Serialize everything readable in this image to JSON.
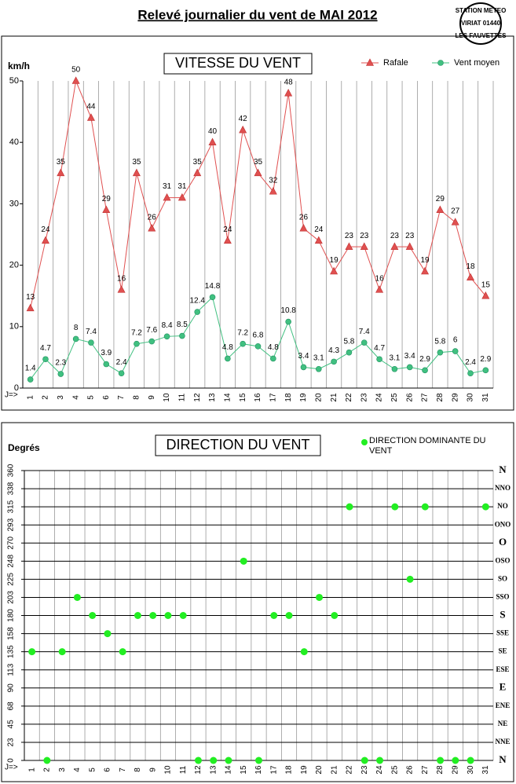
{
  "title": "Relevé journalier du vent de MAI 2012",
  "stamp": [
    "STATION METEO",
    "VIRIAT 01440",
    "LES FAUVETTES"
  ],
  "chart_data": [
    {
      "type": "line",
      "title": "VITESSE DU VENT",
      "y_label": "km/h",
      "x_label": "J=>",
      "categories": [
        "1",
        "2",
        "3",
        "4",
        "5",
        "6",
        "7",
        "8",
        "9",
        "10",
        "11",
        "12",
        "13",
        "14",
        "15",
        "16",
        "17",
        "18",
        "19",
        "20",
        "21",
        "22",
        "23",
        "24",
        "25",
        "26",
        "27",
        "28",
        "29",
        "30",
        "31"
      ],
      "ylim": [
        0,
        50
      ],
      "yticks": [
        0,
        10,
        20,
        30,
        40,
        50
      ],
      "grid": true,
      "legend": "top-right",
      "series": [
        {
          "name": "Rafale",
          "color": "#e05050",
          "marker": "triangle",
          "values": [
            13,
            24,
            35,
            50,
            44,
            29,
            16,
            35,
            26,
            31,
            31,
            35,
            40,
            24,
            42,
            35,
            32,
            48,
            26,
            24,
            19,
            23,
            23,
            16,
            23,
            23,
            19,
            29,
            27,
            18,
            15
          ]
        },
        {
          "name": "Vent moyen",
          "color": "#40c080",
          "marker": "circle",
          "values": [
            1.4,
            4.7,
            2.3,
            8,
            7.4,
            3.9,
            2.4,
            7.2,
            7.6,
            8.4,
            8.5,
            12.4,
            14.8,
            4.8,
            7.2,
            6.8,
            4.8,
            10.8,
            3.4,
            3.1,
            4.3,
            5.8,
            7.4,
            4.7,
            3.1,
            3.4,
            2.9,
            5.8,
            6,
            2.4,
            2.9
          ]
        }
      ]
    },
    {
      "type": "scatter",
      "title": "DIRECTION DU VENT",
      "y_label": "Degrés",
      "x_label": "J=>",
      "categories": [
        "1",
        "2",
        "3",
        "4",
        "5",
        "6",
        "7",
        "8",
        "9",
        "10",
        "11",
        "12",
        "13",
        "14",
        "15",
        "16",
        "17",
        "18",
        "19",
        "20",
        "21",
        "22",
        "23",
        "24",
        "25",
        "26",
        "27",
        "28",
        "29",
        "30",
        "31"
      ],
      "ylim": [
        0,
        360
      ],
      "yticks": [
        0,
        {
          "value": 22.5,
          "label": "23"
        },
        45,
        {
          "value": 67.5,
          "label": "68"
        },
        90,
        {
          "value": 112.5,
          "label": "113"
        },
        135,
        {
          "value": 157.5,
          "label": "158"
        },
        180,
        {
          "value": 202.5,
          "label": "203"
        },
        225,
        {
          "value": 247.5,
          "label": "248"
        },
        270,
        {
          "value": 292.5,
          "label": "293"
        },
        315,
        {
          "value": 337.5,
          "label": "338"
        },
        360
      ],
      "direction_labels": [
        "N",
        "NNE",
        "NE",
        "ENE",
        "E",
        "ESE",
        "SE",
        "SSE",
        "S",
        "SSO",
        "SO",
        "OSO",
        "O",
        "ONO",
        "NO",
        "NNO",
        "N"
      ],
      "grid": true,
      "legend": "top-right",
      "series": [
        {
          "name": "DIRECTION DOMINANTE DU VENT",
          "color": "#22ee22",
          "values": [
            135,
            0,
            135,
            202.5,
            180,
            157.5,
            135,
            180,
            180,
            180,
            180,
            0,
            0,
            0,
            247.5,
            0,
            180,
            180,
            135,
            202.5,
            180,
            315,
            0,
            0,
            315,
            225,
            315,
            0,
            0,
            0,
            315
          ]
        }
      ]
    }
  ]
}
